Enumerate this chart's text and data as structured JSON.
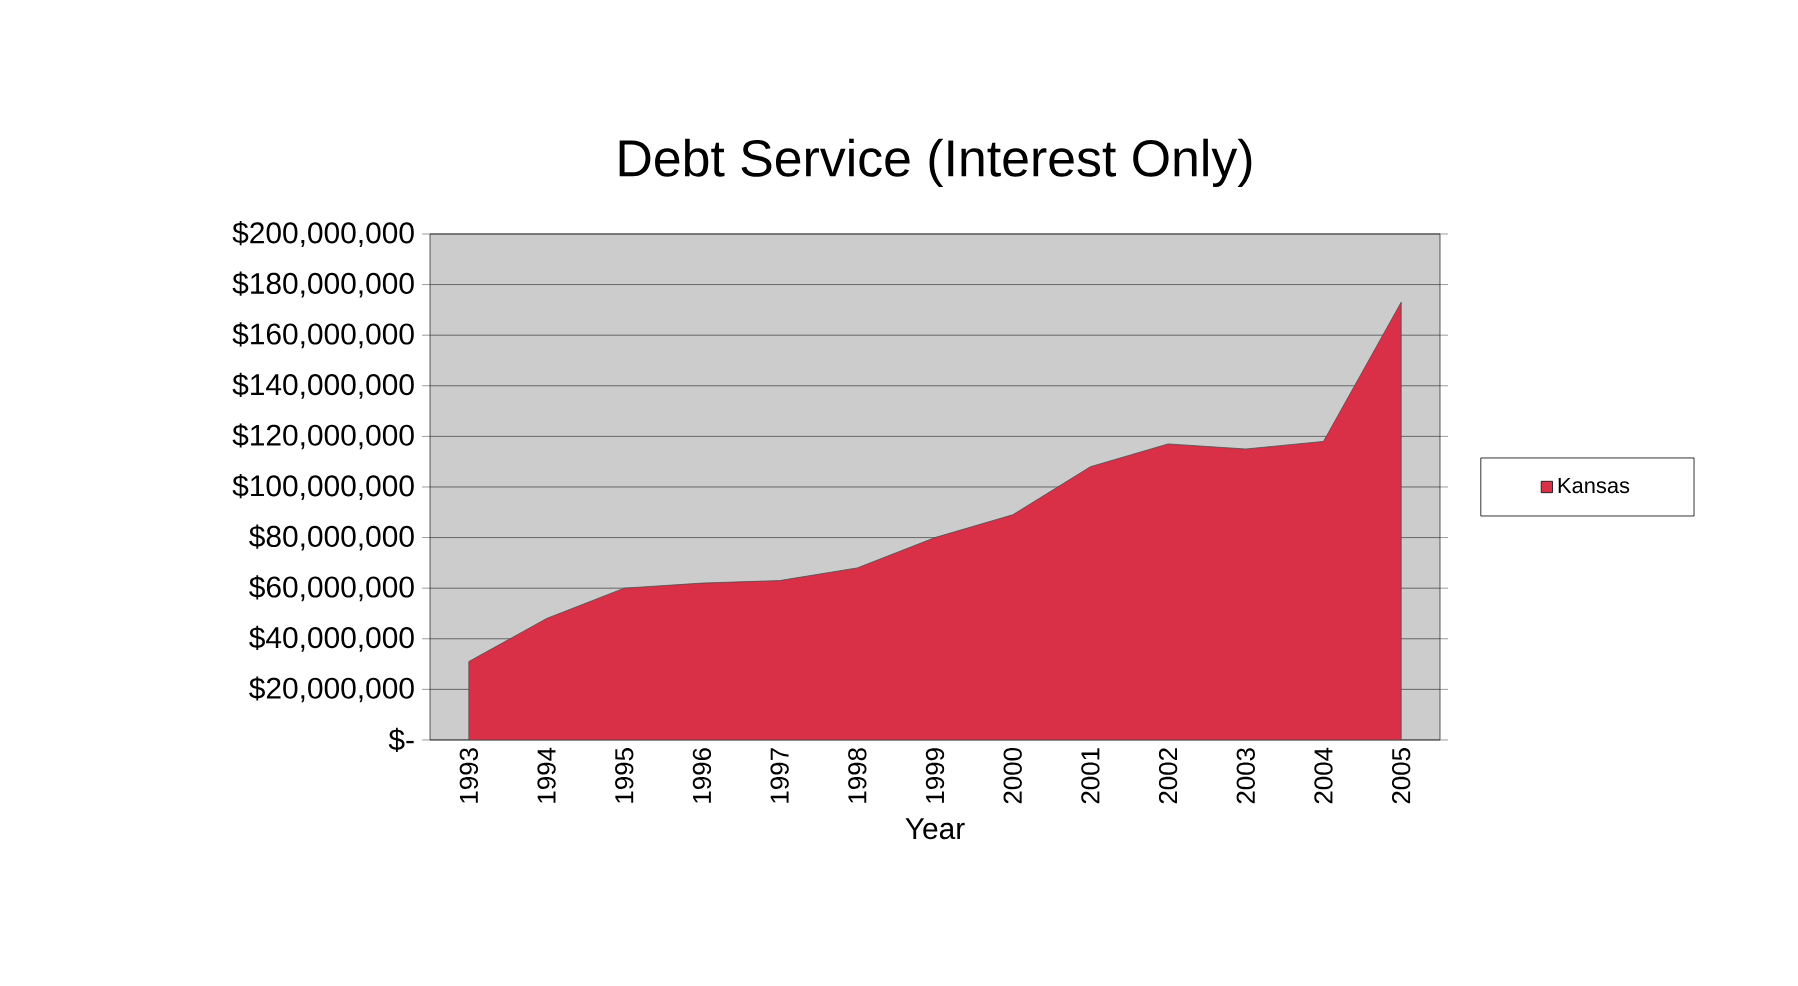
{
  "chart_data": {
    "type": "area",
    "title": "Debt Service (Interest Only)",
    "xlabel": "Year",
    "categories": [
      "1993",
      "1994",
      "1995",
      "1996",
      "1997",
      "1998",
      "1999",
      "2000",
      "2001",
      "2002",
      "2003",
      "2004",
      "2005"
    ],
    "series": [
      {
        "name": "Kansas",
        "color": "#d93048",
        "values": [
          31000000,
          48000000,
          60000000,
          62000000,
          63000000,
          68000000,
          80000000,
          89000000,
          108000000,
          117000000,
          115000000,
          118000000,
          173000000
        ]
      }
    ],
    "ylim": [
      0,
      200000000
    ],
    "yticks": [
      {
        "value": 0,
        "label": "$-"
      },
      {
        "value": 20000000,
        "label": "$20,000,000"
      },
      {
        "value": 40000000,
        "label": "$40,000,000"
      },
      {
        "value": 60000000,
        "label": "$60,000,000"
      },
      {
        "value": 80000000,
        "label": "$80,000,000"
      },
      {
        "value": 100000000,
        "label": "$100,000,000"
      },
      {
        "value": 120000000,
        "label": "$120,000,000"
      },
      {
        "value": 140000000,
        "label": "$140,000,000"
      },
      {
        "value": 160000000,
        "label": "$160,000,000"
      },
      {
        "value": 180000000,
        "label": "$180,000,000"
      },
      {
        "value": 200000000,
        "label": "$200,000,000"
      }
    ],
    "grid": "y",
    "legend": "right",
    "marker": "none"
  }
}
